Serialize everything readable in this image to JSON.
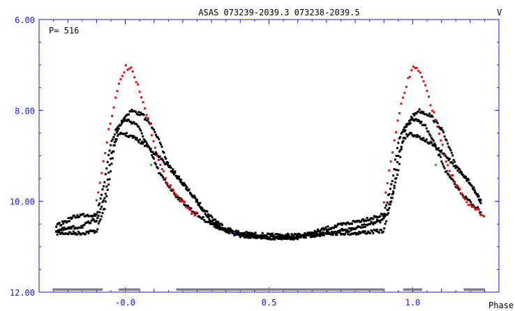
{
  "chart_data": {
    "type": "scatter",
    "title": "ASAS 073239-2039.3 073238-2039.5",
    "annotation": "P= 516",
    "xlabel": "Phase",
    "ylabel": "V",
    "xlim": [
      -0.3,
      1.3
    ],
    "ylim": [
      12.0,
      6.0
    ],
    "y_inverted": true,
    "x_ticks": [
      {
        "label": "-0.0",
        "value": 0.0
      },
      {
        "label": "0.5",
        "value": 0.5
      },
      {
        "label": "1.0",
        "value": 1.0
      }
    ],
    "y_ticks": [
      {
        "label": "6.00",
        "value": 6.0
      },
      {
        "label": "8.00",
        "value": 8.0
      },
      {
        "label": "10.00",
        "value": 10.0
      },
      {
        "label": "12.00",
        "value": 12.0
      }
    ],
    "grid": false,
    "colors": {
      "black_points": "#000000",
      "red_points": "#e01010",
      "green_points": "#10c010",
      "blue_points": "#1a1acc",
      "lower_limits": "#777777",
      "axes": "#1a1acc"
    },
    "series": [
      {
        "color": "black",
        "description": "three main light-curve branches",
        "branches": [
          {
            "x": [
              -0.24,
              -0.15,
              -0.1,
              -0.07,
              -0.05,
              -0.03,
              -0.01,
              0.02,
              0.06,
              0.1,
              0.15,
              0.2,
              0.25,
              0.3,
              0.35,
              0.4,
              0.5,
              0.6,
              0.7,
              0.8,
              0.9,
              0.92,
              0.95,
              0.97,
              0.99,
              1.02,
              1.06,
              1.1,
              1.15,
              1.2,
              1.24
            ],
            "y": [
              10.7,
              10.7,
              10.65,
              10.1,
              9.3,
              8.5,
              8.2,
              8.0,
              8.1,
              8.4,
              9.2,
              9.6,
              10.0,
              10.35,
              10.6,
              10.7,
              10.75,
              10.75,
              10.7,
              10.7,
              10.65,
              10.1,
              9.3,
              8.5,
              8.2,
              8.0,
              8.1,
              8.4,
              9.2,
              9.6,
              10.1
            ]
          },
          {
            "x": [
              -0.24,
              -0.18,
              -0.15,
              -0.1,
              -0.07,
              -0.05,
              -0.03,
              0.0,
              0.04,
              0.08,
              0.12,
              0.18,
              0.25,
              0.3,
              0.35,
              0.4,
              0.5,
              0.6,
              0.7,
              0.8,
              0.9,
              0.93,
              0.95,
              0.97,
              1.0,
              1.04,
              1.08,
              1.12,
              1.18,
              1.24
            ],
            "y": [
              10.55,
              10.35,
              10.3,
              10.3,
              9.5,
              8.7,
              8.4,
              8.2,
              8.3,
              8.8,
              9.4,
              9.9,
              10.3,
              10.5,
              10.65,
              10.75,
              10.8,
              10.8,
              10.6,
              10.45,
              10.3,
              9.5,
              8.7,
              8.4,
              8.2,
              8.3,
              8.8,
              9.4,
              9.9,
              10.25
            ]
          },
          {
            "x": [
              -0.24,
              -0.15,
              -0.1,
              -0.07,
              -0.05,
              -0.03,
              -0.01,
              0.03,
              0.08,
              0.13,
              0.2,
              0.26,
              0.3,
              0.35,
              0.4,
              0.5,
              0.6,
              0.7,
              0.8,
              0.9,
              0.93,
              0.95,
              0.97,
              0.99,
              1.03,
              1.08,
              1.13,
              1.2,
              1.24
            ],
            "y": [
              10.65,
              10.55,
              10.4,
              9.9,
              9.0,
              8.6,
              8.5,
              8.6,
              8.8,
              9.1,
              9.6,
              10.1,
              10.45,
              10.65,
              10.75,
              10.8,
              10.8,
              10.7,
              10.6,
              10.4,
              9.9,
              9.0,
              8.6,
              8.5,
              8.6,
              8.8,
              9.1,
              9.6,
              10.0
            ]
          }
        ]
      },
      {
        "color": "red",
        "x": [
          -0.1,
          -0.08,
          -0.06,
          -0.04,
          -0.02,
          0.0,
          0.02,
          0.04,
          0.06,
          0.08,
          0.1,
          0.12,
          0.15,
          0.18,
          0.2,
          0.22,
          0.25,
          0.9,
          0.92,
          0.94,
          0.96,
          0.98,
          1.0,
          1.02,
          1.04,
          1.06,
          1.08,
          1.1,
          1.12,
          1.15,
          1.18,
          1.2,
          1.22,
          1.25
        ],
        "y": [
          10.0,
          9.3,
          8.5,
          7.9,
          7.4,
          7.05,
          7.1,
          7.4,
          7.8,
          8.2,
          8.7,
          9.2,
          9.6,
          9.9,
          10.0,
          10.2,
          10.3,
          10.0,
          9.3,
          8.5,
          7.9,
          7.4,
          7.05,
          7.1,
          7.4,
          7.8,
          8.2,
          8.7,
          9.2,
          9.6,
          9.9,
          10.1,
          10.2,
          10.3
        ]
      },
      {
        "color": "green",
        "x": [
          0.09,
          1.08
        ],
        "y": [
          9.2,
          9.2
        ]
      },
      {
        "color": "blue",
        "x": [
          0.38
        ],
        "y": [
          10.7
        ]
      }
    ],
    "lower_limits": {
      "y": 11.95,
      "x_ranges": [
        [
          -0.25,
          -0.08
        ],
        [
          -0.02,
          0.05
        ],
        [
          0.18,
          0.9
        ],
        [
          0.97,
          1.03
        ],
        [
          1.18,
          1.25
        ]
      ]
    }
  }
}
